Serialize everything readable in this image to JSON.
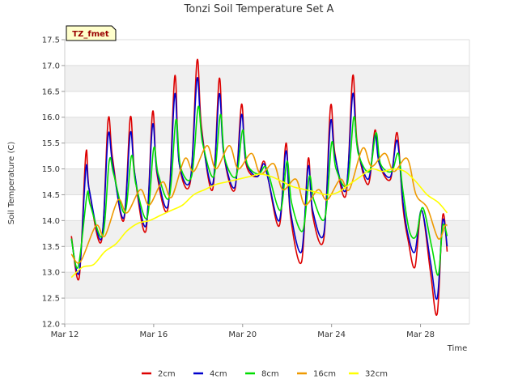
{
  "chart_data": {
    "type": "line",
    "title": "Tonzi Soil Temperature Set A",
    "xlabel": "Time",
    "ylabel": "Soil Temperature (C)",
    "badge": "TZ_fmet",
    "xlim": [
      0,
      18.2
    ],
    "ylim": [
      12.0,
      17.5
    ],
    "x_ticks": [
      {
        "x": 0,
        "label": "Mar 12"
      },
      {
        "x": 4,
        "label": "Mar 16"
      },
      {
        "x": 8,
        "label": "Mar 20"
      },
      {
        "x": 12,
        "label": "Mar 24"
      },
      {
        "x": 16,
        "label": "Mar 28"
      }
    ],
    "y_ticks": [
      12.0,
      12.5,
      13.0,
      13.5,
      14.0,
      14.5,
      15.0,
      15.5,
      16.0,
      16.5,
      17.0,
      17.5
    ],
    "grid": true,
    "legend_position": "bottom",
    "series": [
      {
        "name": "2cm",
        "color": "#dd0000",
        "x": [
          0.3,
          0.65,
          0.95,
          1.1,
          1.65,
          1.95,
          2.15,
          2.65,
          2.95,
          3.15,
          3.65,
          3.95,
          4.15,
          4.65,
          4.95,
          5.15,
          5.65,
          5.95,
          6.15,
          6.65,
          6.95,
          7.15,
          7.65,
          7.95,
          8.15,
          8.65,
          8.95,
          9.15,
          9.65,
          9.95,
          10.15,
          10.65,
          10.95,
          11.15,
          11.65,
          11.95,
          12.15,
          12.65,
          12.95,
          13.15,
          13.65,
          13.95,
          14.15,
          14.65,
          14.95,
          15.2,
          15.45,
          15.75,
          16.05,
          16.45,
          16.75,
          17.0,
          17.2
        ],
        "y": [
          13.7,
          12.9,
          15.3,
          14.6,
          13.6,
          15.95,
          15.2,
          14.0,
          16.0,
          14.9,
          13.8,
          16.1,
          14.9,
          14.25,
          16.8,
          15.1,
          14.75,
          17.1,
          15.8,
          14.6,
          16.75,
          15.3,
          14.6,
          16.25,
          15.1,
          14.85,
          15.15,
          14.8,
          13.9,
          15.5,
          14.1,
          13.2,
          15.2,
          14.1,
          13.65,
          16.2,
          15.3,
          14.5,
          16.8,
          15.5,
          14.7,
          15.75,
          15.1,
          14.8,
          15.7,
          14.3,
          13.6,
          13.1,
          14.2,
          13.0,
          12.2,
          14.1,
          13.4
        ]
      },
      {
        "name": "4cm",
        "color": "#0000cc",
        "x": [
          0.3,
          0.65,
          0.95,
          1.1,
          1.65,
          1.95,
          2.15,
          2.65,
          2.95,
          3.15,
          3.65,
          3.95,
          4.15,
          4.65,
          4.95,
          5.15,
          5.65,
          5.95,
          6.15,
          6.65,
          6.95,
          7.15,
          7.65,
          7.95,
          8.15,
          8.65,
          8.95,
          9.15,
          9.65,
          9.95,
          10.15,
          10.65,
          10.95,
          11.15,
          11.65,
          11.95,
          12.15,
          12.65,
          12.95,
          13.15,
          13.65,
          13.95,
          14.15,
          14.65,
          14.95,
          15.2,
          15.45,
          15.75,
          16.05,
          16.45,
          16.75,
          17.0,
          17.2
        ],
        "y": [
          13.65,
          13.0,
          15.0,
          14.6,
          13.65,
          15.65,
          15.1,
          14.05,
          15.7,
          14.9,
          13.9,
          15.85,
          14.95,
          14.3,
          16.45,
          15.1,
          14.8,
          16.75,
          15.7,
          14.7,
          16.45,
          15.3,
          14.65,
          16.05,
          15.15,
          14.85,
          15.1,
          14.8,
          14.0,
          15.35,
          14.2,
          13.4,
          15.05,
          14.2,
          13.75,
          15.9,
          15.25,
          14.6,
          16.45,
          15.45,
          14.8,
          15.65,
          15.1,
          14.85,
          15.55,
          14.4,
          13.7,
          13.4,
          14.2,
          13.2,
          12.5,
          14.0,
          13.5
        ]
      },
      {
        "name": "8cm",
        "color": "#00dd00",
        "x": [
          0.3,
          0.6,
          1.0,
          1.15,
          1.7,
          2.0,
          2.2,
          2.7,
          3.0,
          3.2,
          3.7,
          4.0,
          4.2,
          4.7,
          5.0,
          5.2,
          5.7,
          6.0,
          6.2,
          6.7,
          7.0,
          7.2,
          7.7,
          8.0,
          8.2,
          8.7,
          9.0,
          9.2,
          9.7,
          10.0,
          10.2,
          10.7,
          11.0,
          11.2,
          11.7,
          12.0,
          12.2,
          12.7,
          13.0,
          13.2,
          13.7,
          14.0,
          14.2,
          14.7,
          15.0,
          15.2,
          15.5,
          15.8,
          16.1,
          16.5,
          16.8,
          17.0,
          17.2
        ],
        "y": [
          13.65,
          13.1,
          14.5,
          14.3,
          13.7,
          15.15,
          14.9,
          14.15,
          15.25,
          14.7,
          14.05,
          15.4,
          14.9,
          14.45,
          15.95,
          15.05,
          14.85,
          16.2,
          15.5,
          14.85,
          16.05,
          15.2,
          14.85,
          15.75,
          15.1,
          14.9,
          15.05,
          14.85,
          14.2,
          15.15,
          14.35,
          13.8,
          14.85,
          14.4,
          14.05,
          15.5,
          15.0,
          14.7,
          16.0,
          15.3,
          14.95,
          15.7,
          15.1,
          14.95,
          15.3,
          14.6,
          13.8,
          13.7,
          14.25,
          13.5,
          12.95,
          13.9,
          13.7
        ]
      },
      {
        "name": "16cm",
        "color": "#ee9900",
        "x": [
          0.3,
          0.7,
          1.4,
          1.8,
          2.4,
          2.8,
          3.4,
          3.8,
          4.4,
          4.8,
          5.4,
          5.8,
          6.4,
          6.8,
          7.4,
          7.8,
          8.4,
          8.8,
          9.4,
          9.8,
          10.4,
          10.8,
          11.4,
          11.8,
          12.4,
          12.8,
          13.4,
          13.8,
          14.4,
          14.8,
          15.4,
          15.8,
          16.3,
          16.8,
          17.1,
          17.2
        ],
        "y": [
          13.35,
          13.2,
          13.9,
          13.7,
          14.4,
          14.15,
          14.6,
          14.3,
          14.75,
          14.45,
          15.2,
          14.95,
          15.45,
          15.0,
          15.45,
          15.0,
          15.3,
          14.9,
          15.1,
          14.6,
          14.8,
          14.3,
          14.6,
          14.4,
          14.8,
          14.6,
          15.4,
          15.05,
          15.3,
          14.95,
          15.2,
          14.5,
          14.25,
          13.65,
          13.9,
          13.9
        ]
      },
      {
        "name": "32cm",
        "color": "#ffff00",
        "x": [
          0.3,
          0.8,
          1.3,
          1.8,
          2.3,
          2.8,
          3.3,
          3.8,
          4.3,
          4.8,
          5.3,
          5.8,
          6.3,
          6.8,
          7.3,
          7.8,
          8.3,
          8.8,
          9.3,
          9.8,
          10.3,
          10.8,
          11.3,
          11.8,
          12.3,
          12.8,
          13.3,
          13.8,
          14.3,
          14.8,
          15.3,
          15.8,
          16.3,
          16.8,
          17.2
        ],
        "y": [
          12.9,
          13.1,
          13.15,
          13.4,
          13.55,
          13.8,
          13.95,
          14.0,
          14.1,
          14.2,
          14.3,
          14.5,
          14.6,
          14.7,
          14.75,
          14.8,
          14.85,
          14.9,
          14.85,
          14.75,
          14.65,
          14.6,
          14.55,
          14.5,
          14.55,
          14.7,
          14.85,
          15.0,
          14.95,
          15.0,
          14.95,
          14.75,
          14.5,
          14.35,
          14.15
        ]
      }
    ]
  }
}
